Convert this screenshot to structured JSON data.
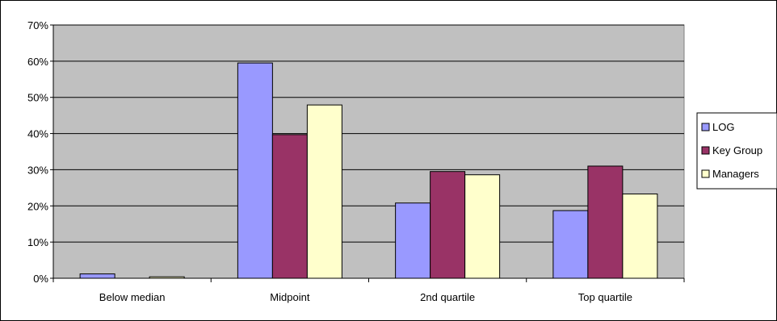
{
  "chart_data": {
    "type": "bar",
    "title": "",
    "xlabel": "",
    "ylabel": "",
    "categories": [
      "Below median",
      "Midpoint",
      "2nd quartile",
      "Top quartile"
    ],
    "series": [
      {
        "name": "LOG",
        "values": [
          1.2,
          59.5,
          20.8,
          18.7
        ],
        "color": "#9999ff"
      },
      {
        "name": "Key Group",
        "values": [
          0,
          39.7,
          29.5,
          31.0
        ],
        "color": "#993366"
      },
      {
        "name": "Managers",
        "values": [
          0.4,
          47.9,
          28.6,
          23.3
        ],
        "color": "#ffffcc"
      }
    ],
    "ylim": [
      0,
      70
    ],
    "yticks": [
      0,
      10,
      20,
      30,
      40,
      50,
      60,
      70
    ],
    "ytick_labels": [
      "0%",
      "10%",
      "20%",
      "30%",
      "40%",
      "50%",
      "60%",
      "70%"
    ],
    "grid": true,
    "plot_background": "#c0c0c0",
    "legend_position": "right"
  }
}
